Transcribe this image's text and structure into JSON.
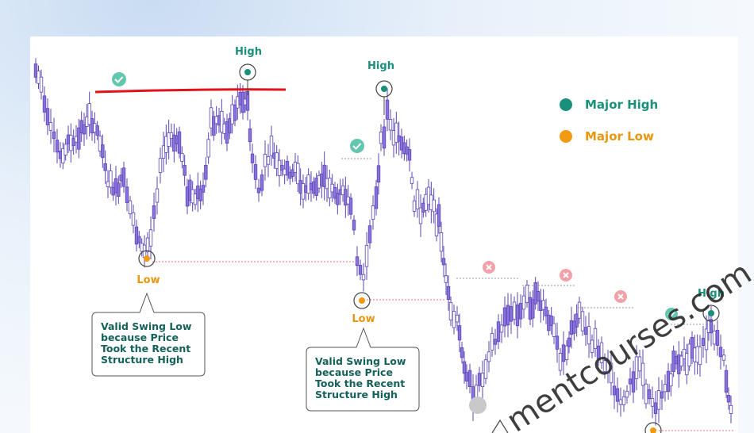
{
  "chart_data": {
    "type": "candlestick",
    "legend": [
      {
        "label": "Major High",
        "color": "#1a8f7a"
      },
      {
        "label": "Major Low",
        "color": "#f29b12"
      }
    ],
    "annotations": {
      "high_label": "High",
      "low_label": "Low",
      "callout_lines": [
        "Valid Swing Low",
        "because Price",
        "Took the Recent",
        "Structure High"
      ]
    },
    "watermark": "mentcourses.com",
    "colors": {
      "candle": "#8a72d8",
      "candle_dark": "#5a45b8",
      "red_line": "#e0121a",
      "dotted": "#e8707a",
      "check": "#63c7b0",
      "cross": "#f4a0a8"
    }
  }
}
